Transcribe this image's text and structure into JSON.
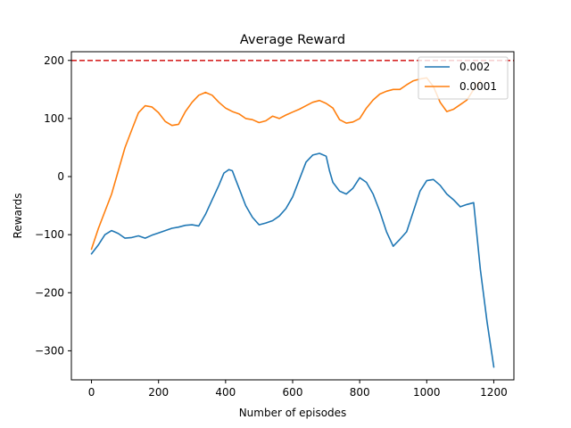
{
  "chart_data": {
    "type": "line",
    "title": "Average Reward",
    "xlabel": "Number of episodes",
    "ylabel": "Rewards",
    "xlim": [
      -60,
      1260
    ],
    "ylim": [
      -350,
      215
    ],
    "xticks": [
      0,
      200,
      400,
      600,
      800,
      1000,
      1200
    ],
    "yticks": [
      -300,
      -200,
      -100,
      0,
      100,
      200
    ],
    "xtick_labels": [
      "0",
      "200",
      "400",
      "600",
      "800",
      "1000",
      "1200"
    ],
    "ytick_labels": [
      "−300",
      "−200",
      "−100",
      "0",
      "100",
      "200"
    ],
    "grid": false,
    "legend_position": "upper right",
    "reference_line": {
      "y": 200,
      "color": "#d62728",
      "style": "dashed"
    },
    "series": [
      {
        "name": "0.002",
        "color": "#1f77b4",
        "x": [
          0,
          20,
          40,
          60,
          80,
          100,
          120,
          140,
          160,
          180,
          200,
          220,
          240,
          260,
          280,
          300,
          320,
          340,
          360,
          380,
          395,
          410,
          420,
          430,
          440,
          460,
          480,
          500,
          520,
          540,
          560,
          580,
          600,
          620,
          640,
          660,
          680,
          700,
          710,
          720,
          740,
          760,
          780,
          800,
          820,
          840,
          860,
          880,
          900,
          920,
          940,
          960,
          980,
          1000,
          1020,
          1040,
          1060,
          1080,
          1100,
          1120,
          1140,
          1160,
          1180,
          1200
        ],
        "y": [
          -133,
          -118,
          -100,
          -93,
          -98,
          -106,
          -105,
          -102,
          -106,
          -101,
          -97,
          -93,
          -89,
          -87,
          -84,
          -83,
          -85,
          -65,
          -40,
          -15,
          6,
          12,
          10,
          -5,
          -20,
          -50,
          -70,
          -83,
          -80,
          -76,
          -68,
          -55,
          -35,
          -5,
          25,
          37,
          40,
          35,
          10,
          -10,
          -25,
          -30,
          -20,
          -2,
          -10,
          -30,
          -60,
          -95,
          -120,
          -108,
          -95,
          -60,
          -25,
          -7,
          -5,
          -15,
          -30,
          -40,
          -52,
          -48,
          -45,
          -160,
          -250,
          -328
        ]
      },
      {
        "name": "0.0001",
        "color": "#ff7f0e",
        "x": [
          0,
          20,
          40,
          60,
          80,
          100,
          120,
          140,
          160,
          180,
          200,
          220,
          240,
          260,
          280,
          300,
          320,
          340,
          360,
          380,
          400,
          420,
          440,
          460,
          480,
          500,
          520,
          540,
          560,
          580,
          600,
          620,
          640,
          660,
          680,
          700,
          720,
          740,
          760,
          780,
          800,
          820,
          840,
          860,
          880,
          900,
          920,
          940,
          960,
          980,
          1000,
          1020,
          1040,
          1060,
          1080,
          1100,
          1120,
          1140,
          1160
        ],
        "y": [
          -125,
          -90,
          -60,
          -30,
          10,
          50,
          80,
          110,
          122,
          120,
          110,
          95,
          88,
          90,
          112,
          128,
          140,
          145,
          140,
          128,
          118,
          112,
          108,
          100,
          98,
          93,
          96,
          104,
          100,
          106,
          111,
          116,
          122,
          128,
          131,
          126,
          118,
          98,
          92,
          94,
          100,
          118,
          132,
          142,
          147,
          150,
          150,
          158,
          165,
          168,
          170,
          155,
          128,
          112,
          116,
          124,
          132,
          150,
          165
        ]
      }
    ]
  }
}
